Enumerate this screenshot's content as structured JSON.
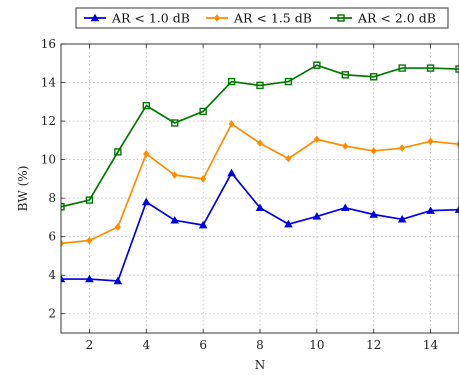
{
  "chart_data": {
    "type": "line",
    "xlabel": "N",
    "ylabel": "BW (%)",
    "xlim": [
      1,
      15
    ],
    "ylim": [
      1,
      16
    ],
    "xticks": [
      2,
      4,
      6,
      8,
      10,
      12,
      14
    ],
    "yticks": [
      2,
      4,
      6,
      8,
      10,
      12,
      14,
      16
    ],
    "grid": true,
    "legend_position": "top-outside",
    "x": [
      1,
      2,
      3,
      4,
      5,
      6,
      7,
      8,
      9,
      10,
      11,
      12,
      13,
      14,
      15
    ],
    "series": [
      {
        "name": "AR < 1.0 dB",
        "color": "#0000e0",
        "marker": "triangle",
        "values": [
          3.8,
          3.8,
          3.7,
          7.8,
          6.85,
          6.6,
          9.3,
          7.5,
          6.65,
          7.05,
          7.5,
          7.15,
          6.9,
          7.35,
          7.4
        ]
      },
      {
        "name": "AR < 1.5 dB",
        "color": "#ff8c00",
        "marker": "diamond",
        "values": [
          5.65,
          5.8,
          6.5,
          10.3,
          9.2,
          9.0,
          11.85,
          10.85,
          10.05,
          11.05,
          10.7,
          10.45,
          10.6,
          10.95,
          10.8
        ]
      },
      {
        "name": "AR < 2.0 dB",
        "color": "#007700",
        "marker": "square",
        "values": [
          7.55,
          7.9,
          10.4,
          12.8,
          11.9,
          12.5,
          14.05,
          13.85,
          14.05,
          14.9,
          14.4,
          14.3,
          14.75,
          14.75,
          14.7
        ]
      }
    ]
  }
}
